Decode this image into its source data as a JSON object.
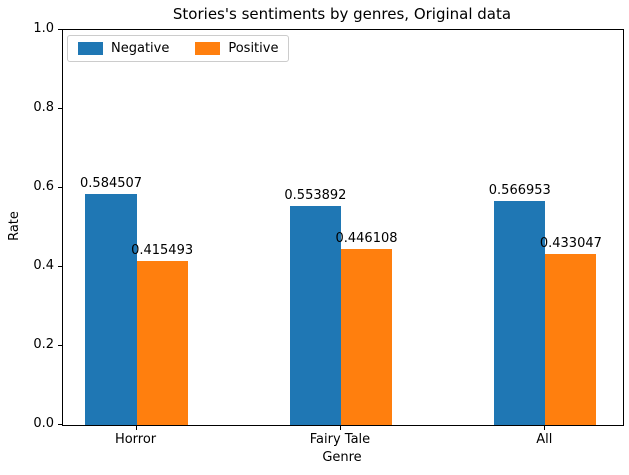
{
  "chart_data": {
    "type": "bar",
    "title": "Stories's sentiments by genres, Original data",
    "xlabel": "Genre",
    "ylabel": "Rate",
    "categories": [
      "Horror",
      "Fairy Tale",
      "All"
    ],
    "series": [
      {
        "name": "Negative",
        "color": "#1f77b4",
        "values": [
          0.584507,
          0.553892,
          0.566953
        ],
        "labels": [
          "0.584507",
          "0.553892",
          "0.566953"
        ]
      },
      {
        "name": "Positive",
        "color": "#ff7f0e",
        "values": [
          0.415493,
          0.446108,
          0.433047
        ],
        "labels": [
          "0.415493",
          "0.446108",
          "0.433047"
        ]
      }
    ],
    "ylim": [
      0,
      1
    ],
    "yticks": [
      0.0,
      0.2,
      0.4,
      0.6,
      0.8,
      1.0
    ],
    "ytick_labels": [
      "0.0",
      "0.2",
      "0.4",
      "0.6",
      "0.8",
      "1.0"
    ],
    "xlim": [
      -0.36,
      2.38
    ],
    "bar_width": 0.25,
    "legend_position": "upper-left",
    "grid": false
  }
}
